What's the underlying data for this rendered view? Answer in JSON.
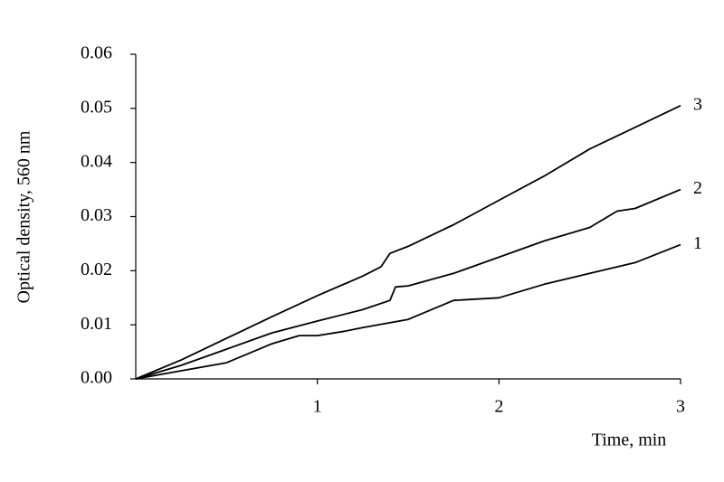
{
  "chart_data": {
    "type": "line",
    "x_label": "Time, min",
    "y_label": "Optical density, 560 nm",
    "xlim": [
      0,
      3
    ],
    "xticks": [
      1,
      2,
      3
    ],
    "ylim": [
      0,
      0.06
    ],
    "yticks": [
      {
        "value": 0,
        "label": "0.00"
      },
      0.01,
      0.02,
      0.03,
      0.04,
      0.05,
      0.06
    ],
    "grid": false,
    "series": [
      {
        "name": "1",
        "color": "#000000",
        "x": [
          0,
          0.25,
          0.5,
          0.75,
          0.9,
          1,
          1.15,
          1.25,
          1.5,
          1.75,
          2,
          2.25,
          2.5,
          2.75,
          3
        ],
        "values": [
          0,
          0.0015,
          0.003,
          0.0065,
          0.008,
          0.008,
          0.0088,
          0.0095,
          0.011,
          0.0145,
          0.015,
          0.0175,
          0.0195,
          0.0215,
          0.0248
        ]
      },
      {
        "name": "2",
        "color": "#000000",
        "x": [
          0,
          0.25,
          0.5,
          0.75,
          1,
          1.25,
          1.4,
          1.43,
          1.5,
          1.75,
          2,
          2.25,
          2.5,
          2.65,
          2.75,
          3
        ],
        "values": [
          0,
          0.0025,
          0.0055,
          0.0085,
          0.0107,
          0.0128,
          0.0145,
          0.017,
          0.0172,
          0.0195,
          0.0225,
          0.0255,
          0.028,
          0.031,
          0.0315,
          0.035
        ]
      },
      {
        "name": "3",
        "color": "#000000",
        "x": [
          0,
          0.25,
          0.5,
          0.75,
          1,
          1.25,
          1.35,
          1.4,
          1.5,
          1.75,
          2,
          2.25,
          2.5,
          2.75,
          3
        ],
        "values": [
          0,
          0.0035,
          0.0075,
          0.0115,
          0.0154,
          0.019,
          0.0207,
          0.0232,
          0.0245,
          0.0285,
          0.033,
          0.0375,
          0.0425,
          0.0465,
          0.0505
        ]
      }
    ]
  }
}
